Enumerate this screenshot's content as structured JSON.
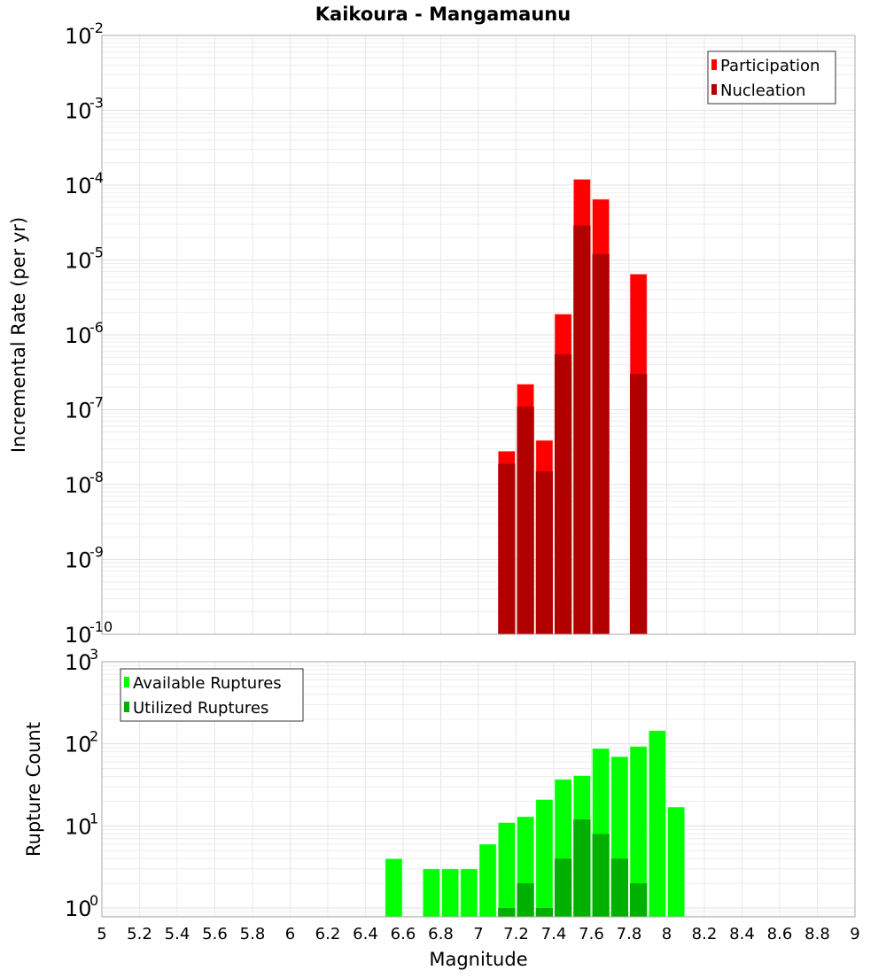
{
  "chart_data": [
    {
      "type": "bar",
      "title": "Kaikoura - Mangamaunu",
      "xlabel": "",
      "ylabel": "Incremental Rate (per yr)",
      "yscale": "log",
      "ylim": [
        1e-10,
        0.01
      ],
      "xlim": [
        5,
        9
      ],
      "bin_width": 0.1,
      "grid": true,
      "legend_placement": "top-right",
      "ytick_exponents": [
        -2,
        -3,
        -4,
        -5,
        -6,
        -7,
        -8,
        -9,
        -10
      ],
      "x": [
        7.15,
        7.25,
        7.35,
        7.45,
        7.55,
        7.65,
        7.85
      ],
      "series": [
        {
          "name": "Participation",
          "color": "#ff0000",
          "values": [
            2.8e-08,
            2.2e-07,
            3.9e-08,
            1.9e-06,
            0.00012,
            6.5e-05,
            6.5e-06
          ]
        },
        {
          "name": "Nucleation",
          "color": "#b20000",
          "values": [
            1.9e-08,
            1.1e-07,
            1.5e-08,
            5.5e-07,
            2.9e-05,
            1.2e-05,
            3e-07
          ]
        }
      ]
    },
    {
      "type": "bar",
      "xlabel": "Magnitude",
      "ylabel": "Rupture Count",
      "yscale": "log",
      "ylim": [
        0.78,
        1000
      ],
      "xlim": [
        5,
        9
      ],
      "bin_width": 0.1,
      "grid": true,
      "legend_placement": "top-left",
      "ytick_exponents": [
        3,
        2,
        1,
        0
      ],
      "xticks": [
        "5",
        "5.2",
        "5.4",
        "5.6",
        "5.8",
        "6",
        "6.2",
        "6.4",
        "6.6",
        "6.8",
        "7",
        "7.2",
        "7.4",
        "7.6",
        "7.8",
        "8",
        "8.2",
        "8.4",
        "8.6",
        "8.8",
        "9"
      ],
      "series": [
        {
          "name": "Available Ruptures",
          "color": "#00ff00",
          "x": [
            6.55,
            6.75,
            6.85,
            6.95,
            7.05,
            7.15,
            7.25,
            7.35,
            7.45,
            7.55,
            7.65,
            7.75,
            7.85,
            7.95,
            8.05
          ],
          "values": [
            4,
            3,
            3,
            3,
            6,
            11,
            13,
            21,
            37,
            41,
            88,
            70,
            93,
            145,
            17
          ]
        },
        {
          "name": "Utilized Ruptures",
          "color": "#00b000",
          "x": [
            7.15,
            7.25,
            7.35,
            7.45,
            7.55,
            7.65,
            7.75,
            7.85
          ],
          "values": [
            1,
            2,
            1,
            4,
            12,
            8,
            4,
            2
          ]
        }
      ]
    }
  ]
}
